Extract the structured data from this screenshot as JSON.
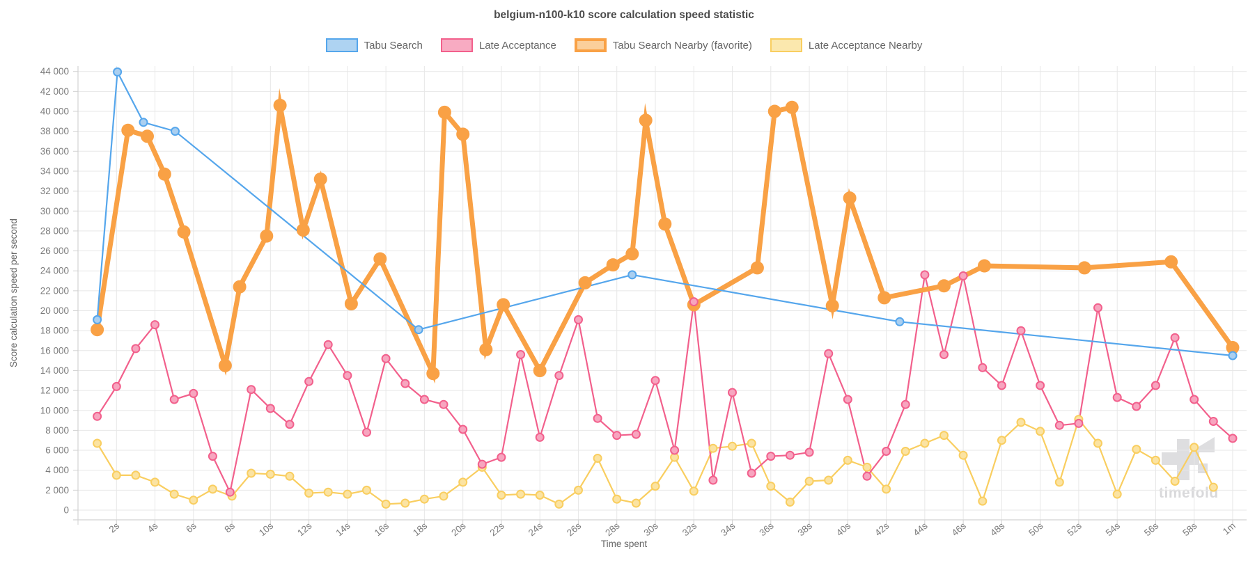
{
  "title": "belgium-n100-k10 score calculation speed statistic",
  "legend": {
    "items": [
      {
        "label": "Tabu Search",
        "fill": "#AED3F2",
        "border": "#55A6EC",
        "border_width": 2
      },
      {
        "label": "Late Acceptance",
        "fill": "#F8ABC2",
        "border": "#F2608C",
        "border_width": 2
      },
      {
        "label": "Tabu Search Nearby (favorite)",
        "fill": "#FBCF9B",
        "border": "#F9A145",
        "border_width": 4
      },
      {
        "label": "Late Acceptance Nearby",
        "fill": "#FBE8AE",
        "border": "#F9CE60",
        "border_width": 2
      }
    ]
  },
  "y_axis": {
    "title": "Score calculation speed per second",
    "tick_labels": [
      "44 000",
      "42 000",
      "40 000",
      "38 000",
      "36 000",
      "34 000",
      "32 000",
      "30 000",
      "28 000",
      "26 000",
      "24 000",
      "22 000",
      "20 000",
      "18 000",
      "16 000",
      "14 000",
      "12 000",
      "10 000",
      "8 000",
      "6 000",
      "4 000",
      "2 000",
      "0"
    ],
    "max": 44000,
    "min": 0,
    "step": 2000
  },
  "x_axis": {
    "title": "Time spent",
    "tick_labels": [
      "2s",
      "4s",
      "6s",
      "8s",
      "10s",
      "12s",
      "14s",
      "16s",
      "18s",
      "20s",
      "22s",
      "24s",
      "26s",
      "28s",
      "30s",
      "32s",
      "34s",
      "36s",
      "38s",
      "40s",
      "42s",
      "44s",
      "46s",
      "48s",
      "50s",
      "52s",
      "54s",
      "56s",
      "58s",
      "1m"
    ],
    "tick_step_seconds": 2
  },
  "watermark": {
    "text": "timefold"
  },
  "chart_data": {
    "type": "line",
    "title": "belgium-n100-k10 score calculation speed statistic",
    "xlabel": "Time spent",
    "ylabel": "Score calculation speed per second",
    "x_unit": "seconds",
    "xlim": [
      0,
      60.7
    ],
    "ylim": [
      0,
      44000
    ],
    "grid": true,
    "legend_position": "top",
    "series": [
      {
        "name": "Late Acceptance Nearby",
        "color": "#F9CE60",
        "point_fill": "#FBE3A2",
        "line_width": 2.2,
        "point_radius": 5.5,
        "points": [
          [
            1,
            6700
          ],
          [
            2,
            3500
          ],
          [
            3,
            3500
          ],
          [
            4,
            2800
          ],
          [
            5,
            1600
          ],
          [
            6,
            1000
          ],
          [
            7,
            2100
          ],
          [
            8,
            1400
          ],
          [
            9,
            3700
          ],
          [
            10,
            3600
          ],
          [
            11,
            3400
          ],
          [
            12,
            1700
          ],
          [
            13,
            1800
          ],
          [
            14,
            1600
          ],
          [
            15,
            2000
          ],
          [
            16,
            600
          ],
          [
            17,
            700
          ],
          [
            18,
            1100
          ],
          [
            19,
            1400
          ],
          [
            20,
            2800
          ],
          [
            21,
            4300
          ],
          [
            22,
            1500
          ],
          [
            23,
            1600
          ],
          [
            24,
            1500
          ],
          [
            25,
            600
          ],
          [
            26,
            2000
          ],
          [
            27,
            5200
          ],
          [
            28,
            1100
          ],
          [
            29,
            700
          ],
          [
            30,
            2400
          ],
          [
            31,
            5300
          ],
          [
            32,
            1900
          ],
          [
            33,
            6200
          ],
          [
            34,
            6400
          ],
          [
            35,
            6700
          ],
          [
            36,
            2400
          ],
          [
            37,
            800
          ],
          [
            38,
            2900
          ],
          [
            39,
            3000
          ],
          [
            40,
            5000
          ],
          [
            41,
            4300
          ],
          [
            42,
            2100
          ],
          [
            43,
            5900
          ],
          [
            44,
            6700
          ],
          [
            45,
            7500
          ],
          [
            46,
            5500
          ],
          [
            47,
            900
          ],
          [
            48,
            7000
          ],
          [
            49,
            8800
          ],
          [
            50,
            7900
          ],
          [
            51,
            2800
          ],
          [
            52,
            9100
          ],
          [
            53,
            6700
          ],
          [
            54,
            1600
          ],
          [
            55,
            6100
          ],
          [
            56,
            5000
          ],
          [
            57,
            2900
          ],
          [
            58,
            6300
          ],
          [
            59,
            2300
          ]
        ]
      },
      {
        "name": "Late Acceptance",
        "color": "#F2608C",
        "point_fill": "#F7A5BF",
        "line_width": 2.2,
        "point_radius": 5.5,
        "points": [
          [
            1,
            9400
          ],
          [
            2,
            12400
          ],
          [
            3,
            16200
          ],
          [
            4,
            18600
          ],
          [
            5,
            11100
          ],
          [
            6,
            11700
          ],
          [
            7,
            5400
          ],
          [
            7.9,
            1800
          ],
          [
            9,
            12100
          ],
          [
            10,
            10200
          ],
          [
            11,
            8600
          ],
          [
            12,
            12900
          ],
          [
            13,
            16600
          ],
          [
            14,
            13500
          ],
          [
            15,
            7800
          ],
          [
            16,
            15200
          ],
          [
            17,
            12700
          ],
          [
            18,
            11100
          ],
          [
            19,
            10600
          ],
          [
            20,
            8100
          ],
          [
            21,
            4600
          ],
          [
            22,
            5300
          ],
          [
            23,
            15600
          ],
          [
            24,
            7300
          ],
          [
            25,
            13500
          ],
          [
            26,
            19100
          ],
          [
            27,
            9200
          ],
          [
            28,
            7500
          ],
          [
            29,
            7600
          ],
          [
            30,
            13000
          ],
          [
            31,
            6000
          ],
          [
            32,
            20900
          ],
          [
            33,
            3000
          ],
          [
            34,
            11800
          ],
          [
            35,
            3700
          ],
          [
            36,
            5400
          ],
          [
            37,
            5500
          ],
          [
            38,
            5800
          ],
          [
            39,
            15700
          ],
          [
            40,
            11100
          ],
          [
            41,
            3400
          ],
          [
            42,
            5900
          ],
          [
            43,
            10600
          ],
          [
            44,
            23600
          ],
          [
            45,
            15600
          ],
          [
            46,
            23500
          ],
          [
            47,
            14300
          ],
          [
            48,
            12500
          ],
          [
            49,
            18000
          ],
          [
            50,
            12500
          ],
          [
            51,
            8500
          ],
          [
            52,
            8700
          ],
          [
            53,
            20300
          ],
          [
            54,
            11300
          ],
          [
            55,
            10400
          ],
          [
            56,
            12500
          ],
          [
            57,
            17300
          ],
          [
            58,
            11100
          ],
          [
            59,
            8900
          ],
          [
            60,
            7200
          ]
        ]
      },
      {
        "name": "Tabu Search Nearby (favorite)",
        "color": "#F9A145",
        "point_fill": "#F9A145",
        "line_width": 7,
        "point_radius": 8.5,
        "favorite": true,
        "points": [
          [
            1,
            18100
          ],
          [
            2.6,
            38100
          ],
          [
            3.6,
            37500
          ],
          [
            4.5,
            33700
          ],
          [
            5.5,
            27900
          ],
          [
            7.65,
            14500
          ],
          [
            8.4,
            22400
          ],
          [
            9.8,
            27500
          ],
          [
            10.5,
            40600
          ],
          [
            11.7,
            28100
          ],
          [
            12.6,
            33200
          ],
          [
            14.2,
            20700
          ],
          [
            15.7,
            25200
          ],
          [
            18.45,
            13700
          ],
          [
            19.05,
            39900
          ],
          [
            20,
            37700
          ],
          [
            21.2,
            16100
          ],
          [
            22.1,
            20600
          ],
          [
            24,
            14000
          ],
          [
            26.35,
            22800
          ],
          [
            27.8,
            24600
          ],
          [
            28.8,
            25700
          ],
          [
            29.5,
            39100
          ],
          [
            30.5,
            28700
          ],
          [
            32,
            20600
          ],
          [
            35.3,
            24300
          ],
          [
            36.2,
            40000
          ],
          [
            37.1,
            40400
          ],
          [
            39.2,
            20500
          ],
          [
            40.1,
            31300
          ],
          [
            41.9,
            21300
          ],
          [
            45,
            22500
          ],
          [
            47.1,
            24500
          ],
          [
            52.3,
            24300
          ],
          [
            56.8,
            24900
          ],
          [
            60,
            16300
          ]
        ]
      },
      {
        "name": "Tabu Search",
        "color": "#55A6EC",
        "point_fill": "#AACFF0",
        "line_width": 2.2,
        "point_radius": 5.5,
        "points": [
          [
            1,
            19100
          ],
          [
            2.05,
            43950
          ],
          [
            3.4,
            38900
          ],
          [
            5.05,
            38000
          ],
          [
            17.7,
            18100
          ],
          [
            28.8,
            23600
          ],
          [
            42.7,
            18900
          ],
          [
            60,
            15500
          ]
        ]
      }
    ]
  }
}
